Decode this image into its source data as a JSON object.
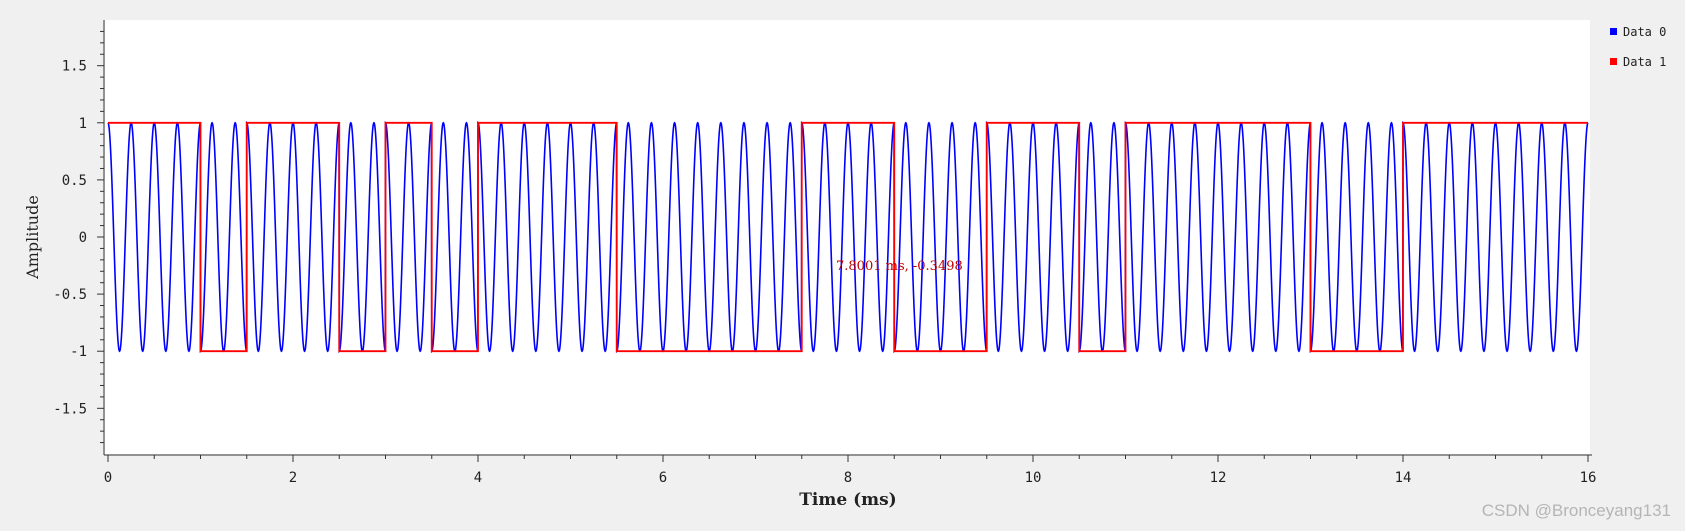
{
  "chart_data": {
    "type": "line",
    "title": "",
    "xlabel": "Time (ms)",
    "ylabel": "Amplitude",
    "xlim": [
      0,
      16
    ],
    "ylim": [
      -1.9,
      1.9
    ],
    "x_ticks": [
      "0",
      "2",
      "4",
      "6",
      "8",
      "10",
      "12",
      "14",
      "16"
    ],
    "y_ticks": [
      "1.5",
      "1",
      "0.5",
      "0",
      "-0.5",
      "-1",
      "-1.5"
    ],
    "grid": false,
    "legend_position": "right",
    "series": [
      {
        "name": "Data 0",
        "color": "#0000ff",
        "kind": "cosine carrier",
        "frequency_khz": 4,
        "phase_shifts_with": "Data 1"
      },
      {
        "name": "Data 1",
        "color": "#ff0000",
        "kind": "step",
        "bit_duration_ms": 0.5,
        "values": [
          1,
          1,
          -1,
          1,
          1,
          -1,
          1,
          -1,
          1,
          1,
          1,
          -1,
          -1,
          -1,
          -1,
          1,
          1,
          -1,
          -1,
          1,
          1,
          -1,
          1,
          1,
          1,
          1,
          -1,
          -1,
          1,
          1,
          1,
          1
        ]
      }
    ],
    "annotation": "7.8001 ms, -0.3498"
  },
  "watermark": "CSDN @Bronceyang131"
}
